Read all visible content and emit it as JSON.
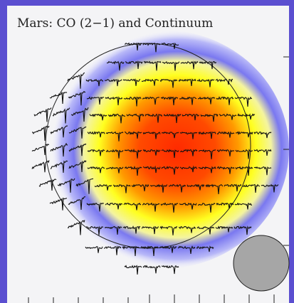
{
  "title": "Mars: CO (2−1) and Continuum"
}
